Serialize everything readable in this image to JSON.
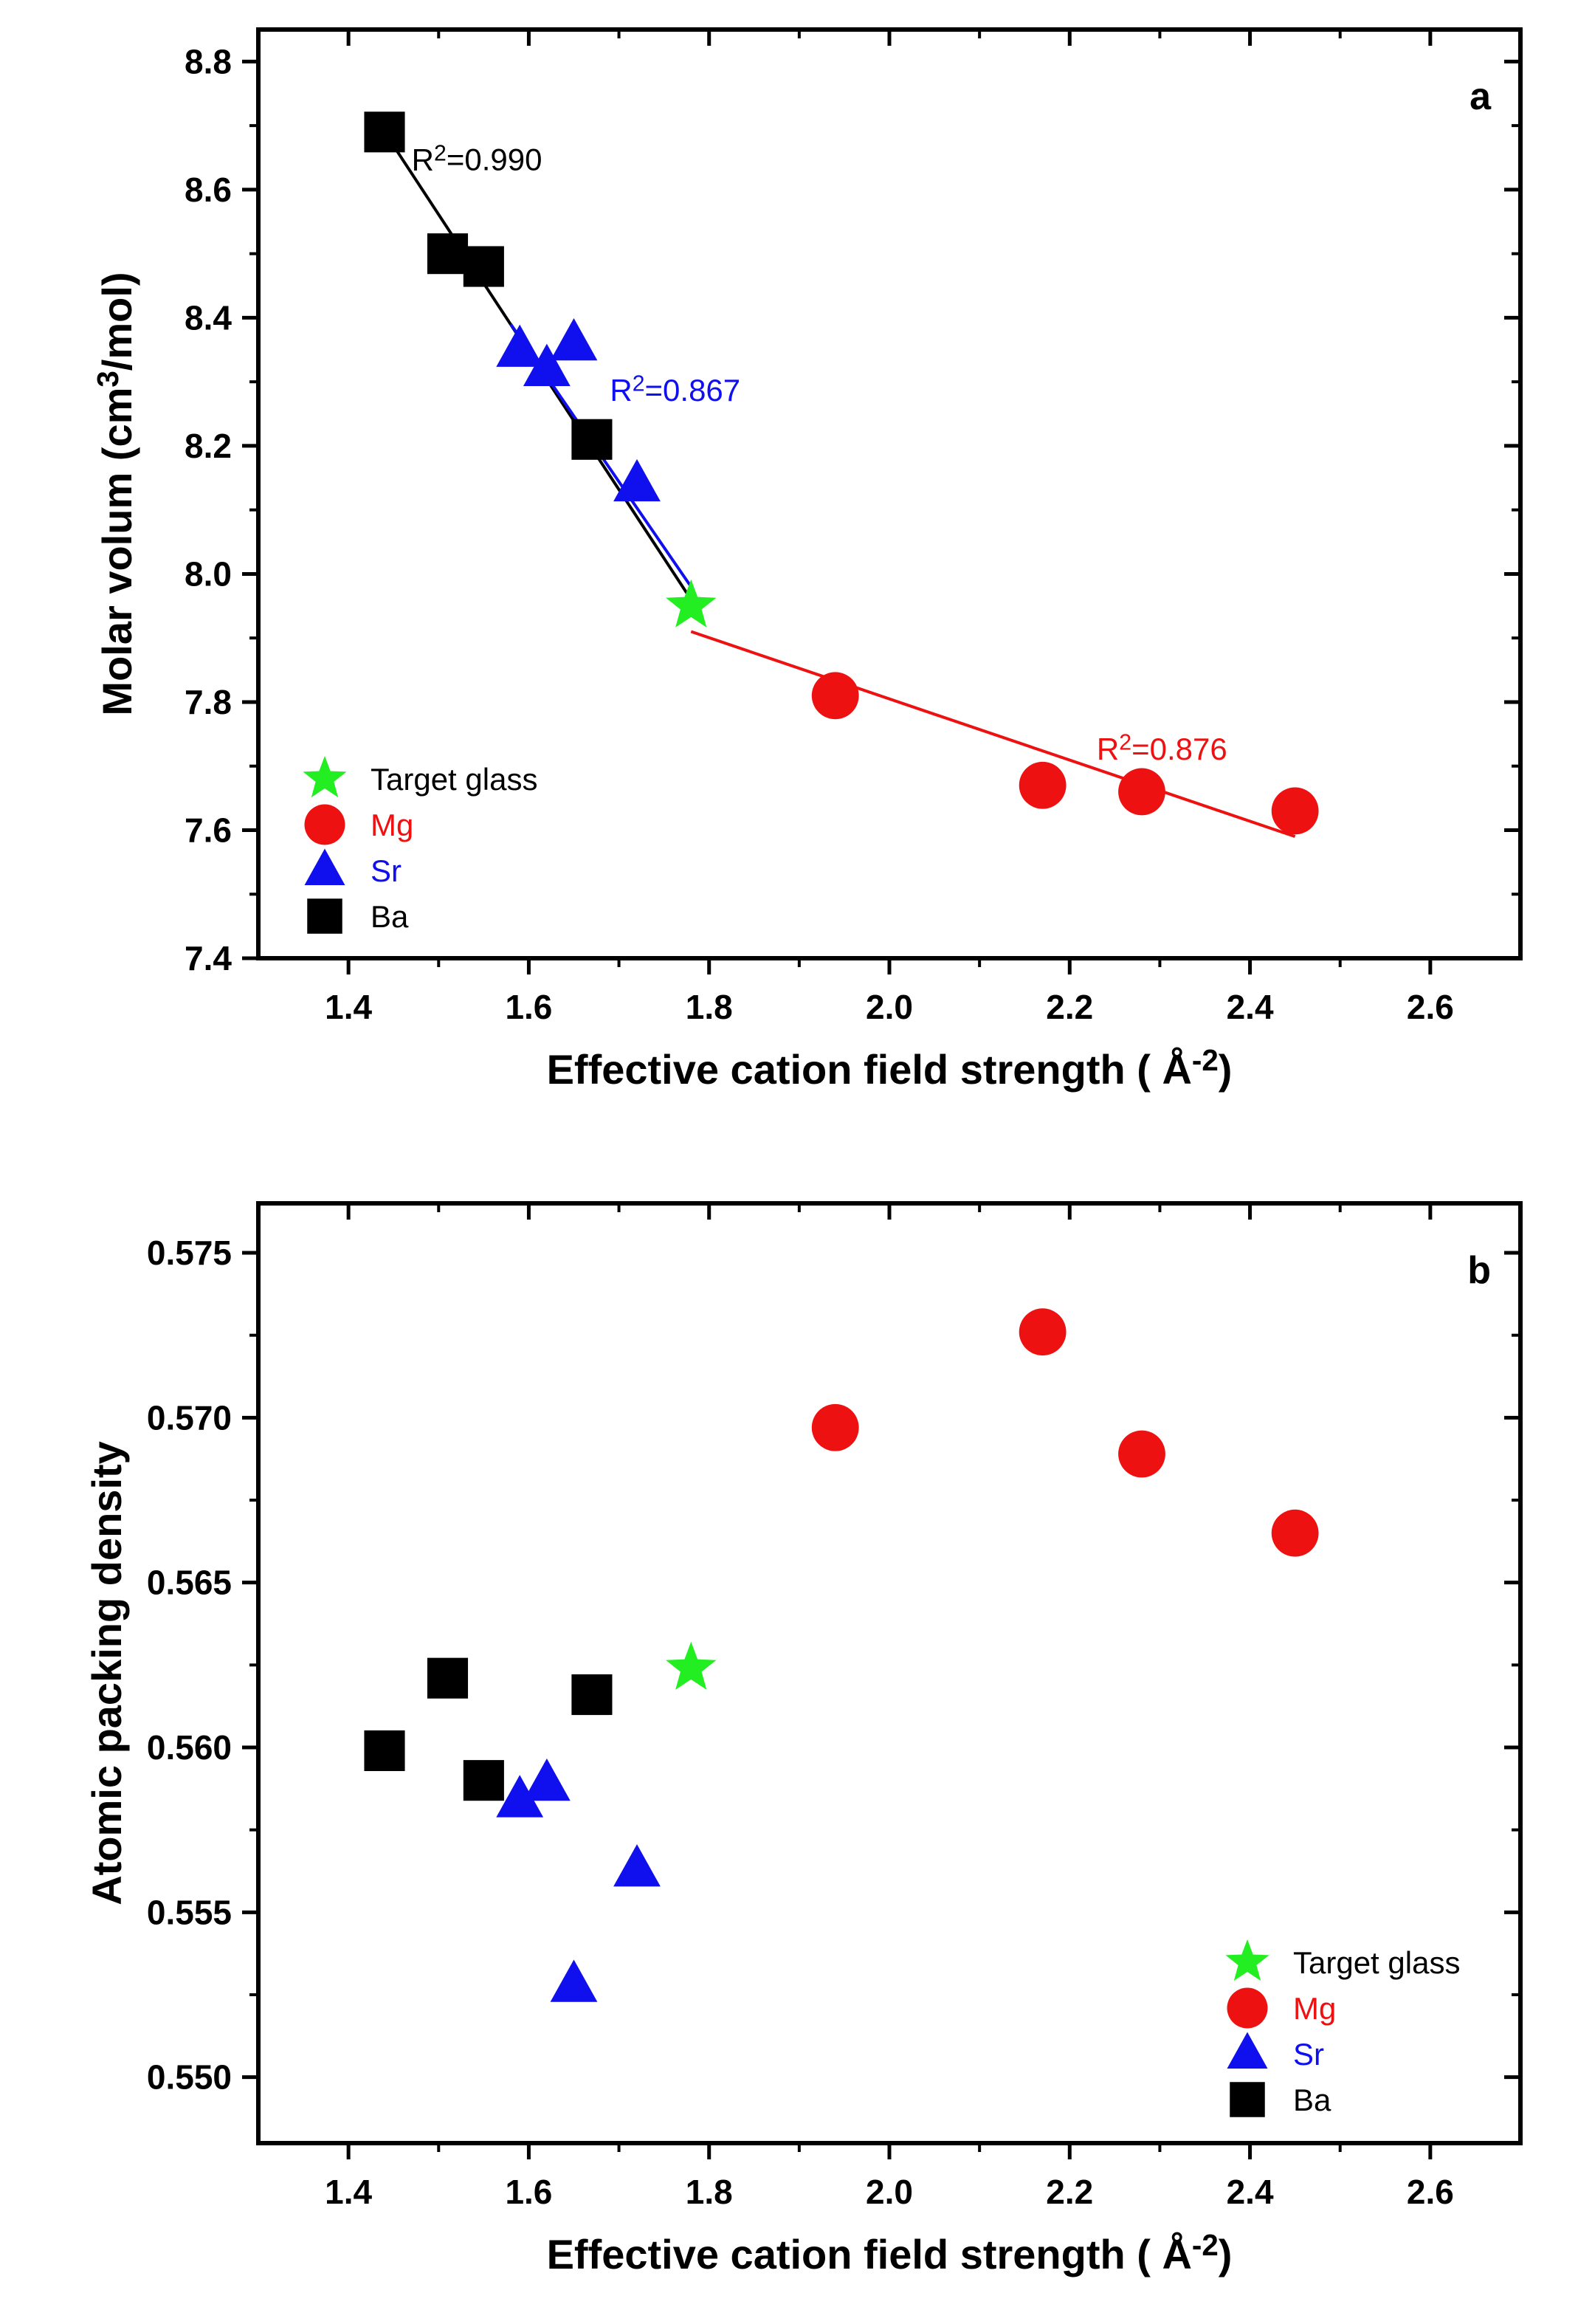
{
  "colors": {
    "target": "#22ee22",
    "Mg": "#ee1111",
    "Sr": "#1010ee",
    "Ba": "#000000"
  },
  "chart_data": [
    {
      "type": "scatter",
      "panel": "a",
      "xlabel": "Effective cation field strength ( Å",
      "xlabel_sup": "-2",
      "xlabel_tail": ")",
      "ylabel": "Molar volum (cm",
      "ylabel_sup": "3",
      "ylabel_tail": "/mol)",
      "xlim": [
        1.3,
        2.7
      ],
      "ylim": [
        7.4,
        8.85
      ],
      "xticks": [
        "1.4",
        "1.6",
        "1.8",
        "2.0",
        "2.2",
        "2.4",
        "2.6"
      ],
      "yticks": [
        "7.4",
        "7.6",
        "7.8",
        "8.0",
        "8.2",
        "8.4",
        "8.6",
        "8.8"
      ],
      "legend": {
        "position": "bottom-left",
        "entries": [
          {
            "label": "Target glass",
            "marker": "star",
            "color_key": "target"
          },
          {
            "label": "Mg",
            "marker": "circle",
            "color_key": "Mg"
          },
          {
            "label": "Sr",
            "marker": "triangle",
            "color_key": "Sr"
          },
          {
            "label": "Ba",
            "marker": "square",
            "color_key": "Ba"
          }
        ]
      },
      "series": [
        {
          "name": "Target glass",
          "marker": "star",
          "color_key": "target",
          "x": [
            1.78
          ],
          "y": [
            7.95
          ]
        },
        {
          "name": "Mg",
          "marker": "circle",
          "color_key": "Mg",
          "x": [
            1.94,
            2.17,
            2.28,
            2.45
          ],
          "y": [
            7.81,
            7.67,
            7.66,
            7.63
          ]
        },
        {
          "name": "Sr",
          "marker": "triangle",
          "color_key": "Sr",
          "x": [
            1.59,
            1.62,
            1.65,
            1.72
          ],
          "y": [
            8.35,
            8.32,
            8.36,
            8.14
          ]
        },
        {
          "name": "Ba",
          "marker": "square",
          "color_key": "Ba",
          "x": [
            1.44,
            1.51,
            1.55,
            1.67
          ],
          "y": [
            8.69,
            8.5,
            8.48,
            8.21
          ]
        }
      ],
      "fits": [
        {
          "color_key": "Ba",
          "x": [
            1.44,
            1.78
          ],
          "y": [
            8.69,
            7.96
          ],
          "label": "R",
          "label_sup": "2",
          "label_tail": "=0.990",
          "label_at": [
            1.47,
            8.63
          ]
        },
        {
          "color_key": "Sr",
          "x": [
            1.58,
            1.78
          ],
          "y": [
            8.39,
            7.98
          ],
          "label": "R",
          "label_sup": "2",
          "label_tail": "=0.867",
          "label_at": [
            1.69,
            8.27
          ]
        },
        {
          "color_key": "Mg",
          "x": [
            1.78,
            2.45
          ],
          "y": [
            7.91,
            7.59
          ],
          "label": "R",
          "label_sup": "2",
          "label_tail": "=0.876",
          "label_at": [
            2.23,
            7.71
          ]
        }
      ]
    },
    {
      "type": "scatter",
      "panel": "b",
      "xlabel": "Effective cation field strength ( Å",
      "xlabel_sup": "-2",
      "xlabel_tail": ")",
      "ylabel": "Atomic packing density",
      "xlim": [
        1.3,
        2.7
      ],
      "ylim": [
        0.548,
        0.5765
      ],
      "xticks": [
        "1.4",
        "1.6",
        "1.8",
        "2.0",
        "2.2",
        "2.4",
        "2.6"
      ],
      "yticks": [
        "0.550",
        "0.555",
        "0.560",
        "0.565",
        "0.570",
        "0.575"
      ],
      "legend": {
        "position": "bottom-right",
        "entries": [
          {
            "label": "Target glass",
            "marker": "star",
            "color_key": "target"
          },
          {
            "label": "Mg",
            "marker": "circle",
            "color_key": "Mg"
          },
          {
            "label": "Sr",
            "marker": "triangle",
            "color_key": "Sr"
          },
          {
            "label": "Ba",
            "marker": "square",
            "color_key": "Ba"
          }
        ]
      },
      "series": [
        {
          "name": "Target glass",
          "marker": "star",
          "color_key": "target",
          "x": [
            1.78
          ],
          "y": [
            0.5624
          ]
        },
        {
          "name": "Mg",
          "marker": "circle",
          "color_key": "Mg",
          "x": [
            1.94,
            2.17,
            2.28,
            2.45
          ],
          "y": [
            0.5697,
            0.5726,
            0.5689,
            0.5665
          ]
        },
        {
          "name": "Sr",
          "marker": "triangle",
          "color_key": "Sr",
          "x": [
            1.59,
            1.62,
            1.65,
            1.72
          ],
          "y": [
            0.5584,
            0.5589,
            0.5528,
            0.5563
          ]
        },
        {
          "name": "Ba",
          "marker": "square",
          "color_key": "Ba",
          "x": [
            1.44,
            1.51,
            1.55,
            1.67
          ],
          "y": [
            0.5599,
            0.5621,
            0.559,
            0.5616
          ]
        }
      ],
      "fits": []
    }
  ]
}
